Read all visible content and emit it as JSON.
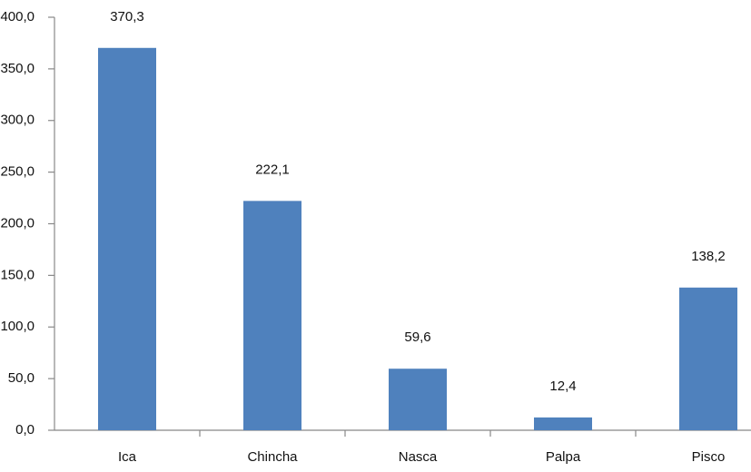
{
  "chart_data": {
    "type": "bar",
    "categories": [
      "Ica",
      "Chincha",
      "Nasca",
      "Palpa",
      "Pisco"
    ],
    "values": [
      370.3,
      222.1,
      59.6,
      12.4,
      138.2
    ],
    "value_labels": [
      "370,3",
      "222,1",
      "59,6",
      "12,4",
      "138,2"
    ],
    "color": "#4f81bd",
    "ylim": [
      0,
      400
    ],
    "yticks": [
      {
        "value": 0,
        "label": "0,0"
      },
      {
        "value": 50,
        "label": "50,0"
      },
      {
        "value": 100,
        "label": "100,0"
      },
      {
        "value": 150,
        "label": "150,0"
      },
      {
        "value": 200,
        "label": "200,0"
      },
      {
        "value": 250,
        "label": "250,0"
      },
      {
        "value": 300,
        "label": "300,0"
      },
      {
        "value": 350,
        "label": "350,0"
      },
      {
        "value": 400,
        "label": "400,0"
      }
    ],
    "grid": false
  }
}
